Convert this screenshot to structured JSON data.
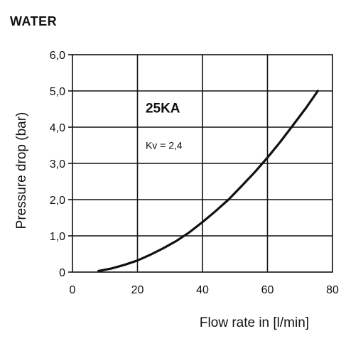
{
  "title": "WATER",
  "chart_data": {
    "type": "line",
    "xlabel": "Flow rate in [l/min]",
    "ylabel": "Pressure drop (bar)",
    "xlim": [
      0,
      80
    ],
    "ylim": [
      0,
      6
    ],
    "x_ticks": [
      "0",
      "20",
      "40",
      "60",
      "80"
    ],
    "y_ticks": [
      "0",
      "1,0",
      "2,0",
      "3,0",
      "4,0",
      "5,0",
      "6,0"
    ],
    "grid": true,
    "annotations": {
      "model": "25KA",
      "kv": "Kv = 2,4"
    },
    "series": [
      {
        "x": [
          8,
          12,
          16,
          20,
          24,
          28,
          32,
          36,
          40,
          44,
          48,
          52,
          56,
          60,
          64,
          68,
          72,
          75.5
        ],
        "y": [
          0.03,
          0.1,
          0.2,
          0.32,
          0.48,
          0.66,
          0.86,
          1.1,
          1.38,
          1.68,
          2.0,
          2.37,
          2.75,
          3.16,
          3.6,
          4.07,
          4.55,
          5.0
        ]
      }
    ],
    "line_color": "#111111"
  }
}
